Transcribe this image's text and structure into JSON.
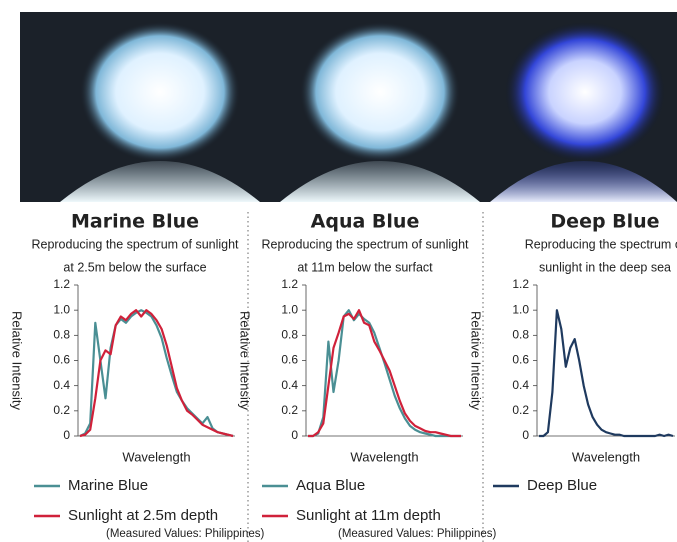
{
  "chart_data": [
    {
      "type": "line",
      "title": "Marine Blue",
      "subtitle": [
        "Reproducing the spectrum of sunlight",
        "at 2.5m below the surface"
      ],
      "ylabel": "Relative Intensity",
      "xlabel": "Wavelength",
      "ylim": [
        0,
        1.2
      ],
      "yticks": [
        0,
        0.2,
        0.4,
        0.6,
        0.8,
        {
          "value": 1,
          "label": "1.0"
        },
        1.2
      ],
      "series": [
        {
          "name": "Marine Blue",
          "color": "#4a8f94",
          "values": [
            0,
            0.02,
            0.1,
            0.9,
            0.6,
            0.3,
            0.7,
            0.88,
            0.93,
            0.9,
            0.95,
            0.98,
            1.0,
            0.98,
            0.95,
            0.88,
            0.78,
            0.62,
            0.48,
            0.35,
            0.28,
            0.22,
            0.18,
            0.14,
            0.1,
            0.15,
            0.06,
            0.03,
            0.02,
            0.01,
            0
          ]
        },
        {
          "name": "Sunlight at 2.5m depth",
          "color": "#d0213a",
          "values": [
            0,
            0.01,
            0.05,
            0.3,
            0.6,
            0.68,
            0.65,
            0.88,
            0.95,
            0.92,
            0.97,
            1.0,
            0.95,
            1.0,
            0.97,
            0.92,
            0.85,
            0.72,
            0.55,
            0.38,
            0.28,
            0.2,
            0.17,
            0.13,
            0.09,
            0.07,
            0.05,
            0.03,
            0.02,
            0.01,
            0
          ]
        }
      ],
      "note": "(Measured Values: Philippines)"
    },
    {
      "type": "line",
      "title": "Aqua Blue",
      "subtitle": [
        "Reproducing the spectrum of sunlight",
        "at 11m below the surfact"
      ],
      "ylabel": "Relative Intensity",
      "xlabel": "Wavelength",
      "ylim": [
        0,
        1.2
      ],
      "yticks": [
        0,
        0.2,
        0.4,
        0.6,
        0.8,
        {
          "value": 1,
          "label": "1.0"
        },
        1.2
      ],
      "series": [
        {
          "name": "Aqua Blue",
          "color": "#4a8f94",
          "values": [
            0,
            0,
            0.02,
            0.15,
            0.75,
            0.35,
            0.6,
            0.95,
            1.0,
            0.92,
            0.97,
            0.93,
            0.9,
            0.82,
            0.7,
            0.58,
            0.45,
            0.32,
            0.22,
            0.14,
            0.08,
            0.05,
            0.03,
            0.02,
            0.01,
            0,
            0,
            0,
            0,
            0,
            0
          ]
        },
        {
          "name": "Sunlight at 11m depth",
          "color": "#d0213a",
          "values": [
            0,
            0,
            0.03,
            0.1,
            0.4,
            0.7,
            0.82,
            0.95,
            0.97,
            0.93,
            1.0,
            0.9,
            0.88,
            0.75,
            0.68,
            0.6,
            0.52,
            0.4,
            0.28,
            0.18,
            0.12,
            0.08,
            0.06,
            0.04,
            0.03,
            0.03,
            0.02,
            0.01,
            0,
            0,
            0
          ]
        }
      ],
      "note": "(Measured Values: Philippines)"
    },
    {
      "type": "line",
      "title": "Deep Blue",
      "subtitle": [
        "Reproducing the spectrum of",
        "sunlight in the deep sea"
      ],
      "ylabel": "Relative Intensity",
      "xlabel": "Wavelength",
      "ylim": [
        0,
        1.2
      ],
      "yticks": [
        0,
        0.2,
        0.4,
        0.6,
        0.8,
        {
          "value": 1,
          "label": "1.0"
        },
        1.2
      ],
      "series": [
        {
          "name": "Deep Blue",
          "color": "#1f3a5f",
          "values": [
            0,
            0,
            0.03,
            0.35,
            1.0,
            0.85,
            0.55,
            0.7,
            0.77,
            0.6,
            0.4,
            0.25,
            0.15,
            0.09,
            0.05,
            0.03,
            0.02,
            0.01,
            0.01,
            0,
            0,
            0,
            0,
            0,
            0,
            0,
            0,
            0.01,
            0,
            0.01,
            0
          ]
        }
      ]
    }
  ]
}
